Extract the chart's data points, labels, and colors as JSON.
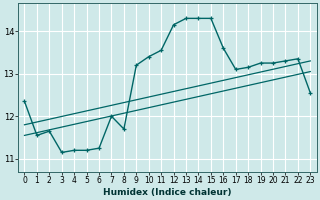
{
  "xlabel": "Humidex (Indice chaleur)",
  "background_color": "#cfe9e9",
  "grid_color": "#ffffff",
  "line_color": "#006666",
  "xlim": [
    -0.5,
    23.5
  ],
  "ylim": [
    10.7,
    14.65
  ],
  "xticks": [
    0,
    1,
    2,
    3,
    4,
    5,
    6,
    7,
    8,
    9,
    10,
    11,
    12,
    13,
    14,
    15,
    16,
    17,
    18,
    19,
    20,
    21,
    22,
    23
  ],
  "yticks": [
    11,
    12,
    13,
    14
  ],
  "curve1_x": [
    0,
    1,
    2,
    3,
    4,
    5,
    6,
    7,
    8,
    9,
    10,
    11,
    12,
    13,
    14,
    15,
    16,
    17,
    18,
    19,
    20,
    21,
    22,
    23
  ],
  "curve1_y": [
    12.35,
    11.55,
    11.65,
    11.15,
    11.2,
    11.2,
    11.25,
    12.0,
    11.7,
    13.2,
    13.4,
    13.55,
    14.15,
    14.3,
    14.3,
    14.3,
    13.6,
    13.1,
    13.15,
    13.25,
    13.25,
    13.3,
    13.35,
    12.55
  ],
  "curve2_x": [
    0,
    23
  ],
  "curve2_y": [
    11.8,
    13.3
  ],
  "curve3_x": [
    0,
    23
  ],
  "curve3_y": [
    11.55,
    13.05
  ]
}
